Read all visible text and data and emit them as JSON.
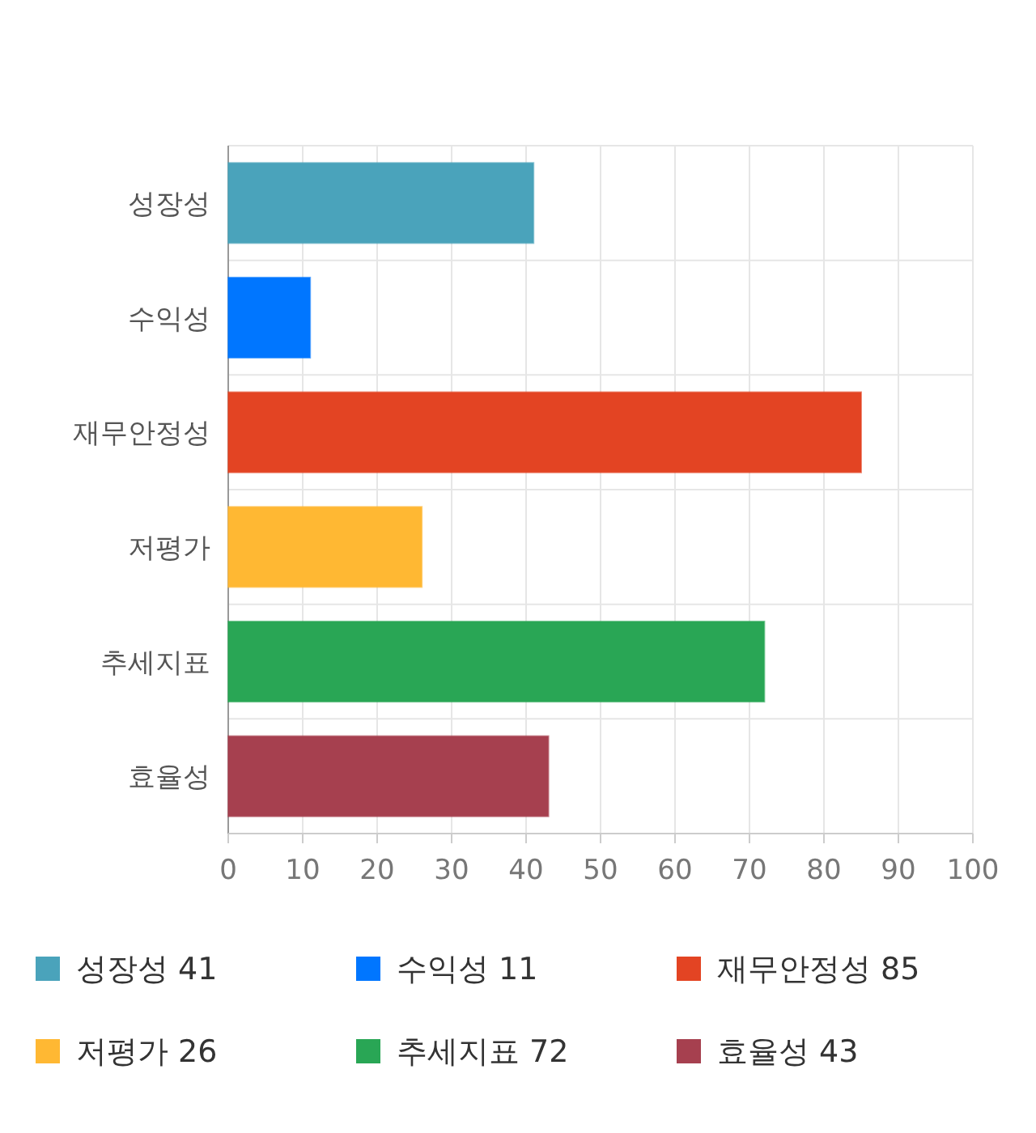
{
  "chart_data": {
    "type": "bar",
    "orientation": "horizontal",
    "stacked": true,
    "categories": [
      "성장성",
      "수익성",
      "재무안정성",
      "저평가",
      "추세지표",
      "효율성"
    ],
    "series": [
      {
        "name": "성장성 41",
        "color": "#4aa3bb",
        "values": [
          41,
          null,
          null,
          null,
          null,
          null
        ]
      },
      {
        "name": "수익성 11",
        "color": "#0076ff",
        "values": [
          null,
          11,
          null,
          null,
          null,
          null
        ]
      },
      {
        "name": "재무안정성 85",
        "color": "#e34423",
        "values": [
          null,
          null,
          85,
          null,
          null,
          null
        ]
      },
      {
        "name": "저평가 26",
        "color": "#ffb833",
        "values": [
          null,
          null,
          null,
          26,
          null,
          null
        ]
      },
      {
        "name": "추세지표 72",
        "color": "#29a655",
        "values": [
          null,
          null,
          null,
          null,
          72,
          null
        ]
      },
      {
        "name": "효율성 43",
        "color": "#a6404f",
        "values": [
          null,
          null,
          null,
          null,
          null,
          43
        ]
      }
    ],
    "xlim": [
      0,
      100
    ],
    "xticks": [
      0,
      10,
      20,
      30,
      40,
      50,
      60,
      70,
      80,
      90,
      100
    ],
    "grid": true,
    "legend": "bottom"
  }
}
